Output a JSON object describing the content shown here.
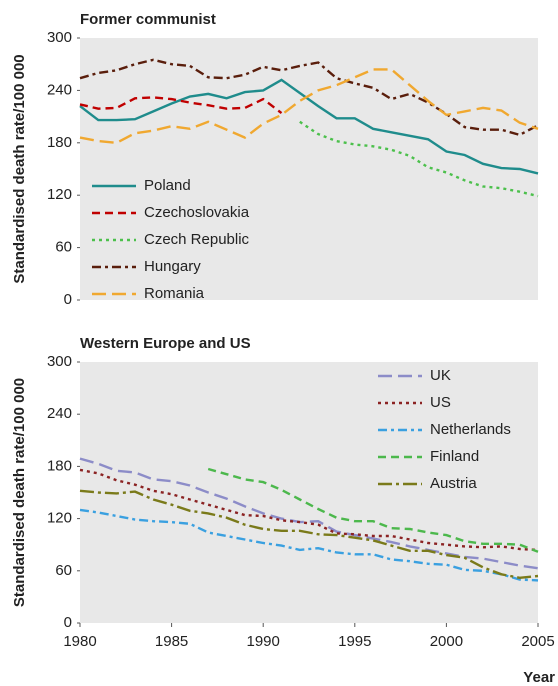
{
  "chart_data": [
    {
      "type": "line",
      "title": "Former communist",
      "ylabel": "Standardised death rate/100 000",
      "x": [
        1980,
        1981,
        1982,
        1983,
        1984,
        1985,
        1986,
        1987,
        1988,
        1989,
        1990,
        1991,
        1992,
        1993,
        1994,
        1995,
        1996,
        1997,
        1998,
        1999,
        2000,
        2001,
        2002,
        2003,
        2004,
        2005
      ],
      "xlim": [
        1980,
        2005
      ],
      "ylim": [
        0,
        300
      ],
      "yticks": [
        0,
        60,
        120,
        180,
        240,
        300
      ],
      "legend": "lower left",
      "series": [
        {
          "name": "Poland",
          "color": "#1f8c8c",
          "style": "solid",
          "values": [
            222,
            206,
            206,
            207,
            216,
            225,
            233,
            236,
            231,
            238,
            240,
            252,
            237,
            222,
            208,
            208,
            196,
            192,
            188,
            184,
            170,
            166,
            156,
            151,
            150,
            145
          ]
        },
        {
          "name": "Czechoslovakia",
          "color": "#c00000",
          "style": "dashed",
          "values": [
            224,
            219,
            220,
            231,
            232,
            230,
            226,
            223,
            219,
            220,
            230,
            214,
            null,
            null,
            null,
            null,
            null,
            null,
            null,
            null,
            null,
            null,
            null,
            null,
            null,
            null
          ]
        },
        {
          "name": "Czech Republic",
          "color": "#4cc04c",
          "style": "dotted",
          "values": [
            null,
            null,
            null,
            null,
            null,
            null,
            null,
            null,
            null,
            null,
            null,
            null,
            204,
            190,
            182,
            178,
            176,
            172,
            165,
            152,
            146,
            137,
            130,
            128,
            124,
            119
          ]
        },
        {
          "name": "Hungary",
          "color": "#5a1e0c",
          "style": "dashdot",
          "values": [
            254,
            260,
            263,
            270,
            275,
            270,
            268,
            255,
            254,
            258,
            267,
            263,
            268,
            272,
            254,
            248,
            243,
            230,
            236,
            226,
            213,
            198,
            195,
            195,
            189,
            200
          ]
        },
        {
          "name": "Romania",
          "color": "#f0a830",
          "style": "longdash",
          "values": [
            186,
            182,
            180,
            191,
            194,
            199,
            196,
            204,
            195,
            186,
            202,
            212,
            228,
            240,
            246,
            255,
            264,
            264,
            246,
            228,
            212,
            216,
            220,
            217,
            203,
            196
          ]
        }
      ]
    },
    {
      "type": "line",
      "title": "Western Europe and US",
      "ylabel": "Standardised death rate/100 000",
      "xlabel": "Year",
      "x": [
        1980,
        1981,
        1982,
        1983,
        1984,
        1985,
        1986,
        1987,
        1988,
        1989,
        1990,
        1991,
        1992,
        1993,
        1994,
        1995,
        1996,
        1997,
        1998,
        1999,
        2000,
        2001,
        2002,
        2003,
        2004,
        2005
      ],
      "xlim": [
        1980,
        2005
      ],
      "xticks": [
        1980,
        1985,
        1990,
        1995,
        2000,
        2005
      ],
      "ylim": [
        0,
        300
      ],
      "yticks": [
        0,
        60,
        120,
        180,
        240,
        300
      ],
      "legend": "upper right",
      "series": [
        {
          "name": "UK",
          "color": "#8c8cc8",
          "style": "longdash",
          "values": [
            189,
            183,
            175,
            173,
            165,
            163,
            158,
            150,
            143,
            134,
            126,
            120,
            116,
            117,
            105,
            101,
            97,
            93,
            88,
            84,
            80,
            76,
            74,
            70,
            66,
            63
          ]
        },
        {
          "name": "US",
          "color": "#8b2323",
          "style": "dotted",
          "values": [
            176,
            172,
            164,
            159,
            152,
            148,
            142,
            136,
            130,
            124,
            123,
            118,
            116,
            113,
            103,
            102,
            100,
            100,
            96,
            92,
            90,
            88,
            87,
            88,
            85,
            84
          ]
        },
        {
          "name": "Netherlands",
          "color": "#3aa0e0",
          "style": "dashdot",
          "values": [
            130,
            127,
            123,
            119,
            117,
            116,
            114,
            104,
            100,
            96,
            92,
            89,
            84,
            86,
            81,
            79,
            79,
            73,
            71,
            68,
            67,
            61,
            60,
            56,
            50,
            49
          ]
        },
        {
          "name": "Finland",
          "color": "#4cb84c",
          "style": "dashed",
          "values": [
            null,
            null,
            null,
            null,
            null,
            null,
            null,
            177,
            171,
            165,
            162,
            153,
            142,
            131,
            121,
            117,
            117,
            109,
            108,
            104,
            101,
            94,
            91,
            91,
            90,
            82
          ]
        },
        {
          "name": "Austria",
          "color": "#7a7a1a",
          "style": "dashdotlong",
          "values": [
            152,
            150,
            149,
            151,
            142,
            136,
            129,
            126,
            121,
            113,
            108,
            106,
            106,
            102,
            101,
            98,
            95,
            89,
            83,
            83,
            78,
            75,
            64,
            56,
            52,
            54
          ]
        }
      ]
    }
  ]
}
